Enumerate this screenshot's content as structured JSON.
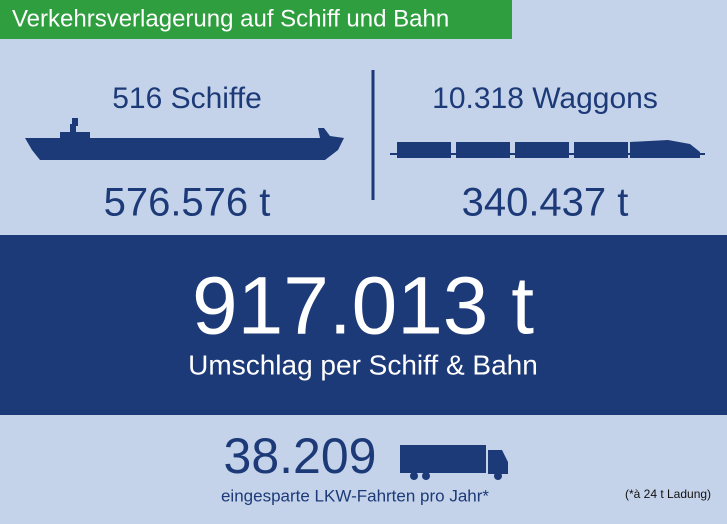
{
  "header": {
    "title": "Verkehrsverlagerung auf Schiff und Bahn"
  },
  "ship": {
    "label": "516 Schiffe",
    "tonnage": "576.576 t"
  },
  "rail": {
    "label": "10.318 Waggons",
    "tonnage": "340.437 t"
  },
  "total": {
    "tonnage": "917.013 t",
    "caption": "Umschlag per Schiff & Bahn"
  },
  "trucks": {
    "count": "38.209",
    "caption": "eingesparte LKW-Fahrten pro Jahr*",
    "footnote": "(*à 24 t Ladung)"
  }
}
